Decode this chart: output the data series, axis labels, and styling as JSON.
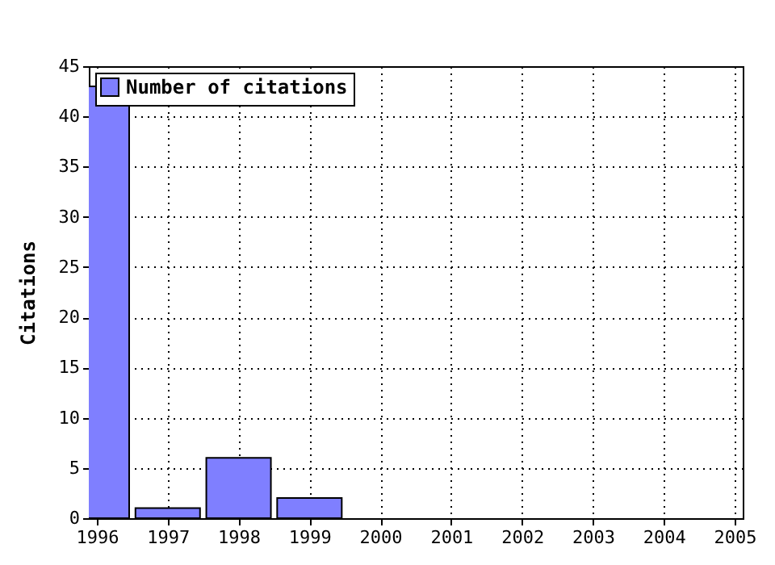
{
  "chart_data": {
    "type": "bar",
    "ylabel": "Citations",
    "x": [
      1996,
      1997,
      1998,
      1999
    ],
    "series": [
      {
        "name": "Number of citations",
        "color": "#7f7fff",
        "values": [
          43,
          1,
          6,
          2
        ]
      }
    ],
    "xlim": [
      1996,
      2005
    ],
    "xticks": [
      1996,
      1997,
      1998,
      1999,
      2000,
      2001,
      2002,
      2003,
      2004,
      2005
    ],
    "ylim": [
      0,
      45
    ],
    "yticks": [
      0,
      5,
      10,
      15,
      20,
      25,
      30,
      35,
      40,
      45
    ],
    "grid": true,
    "legend": "top left"
  }
}
